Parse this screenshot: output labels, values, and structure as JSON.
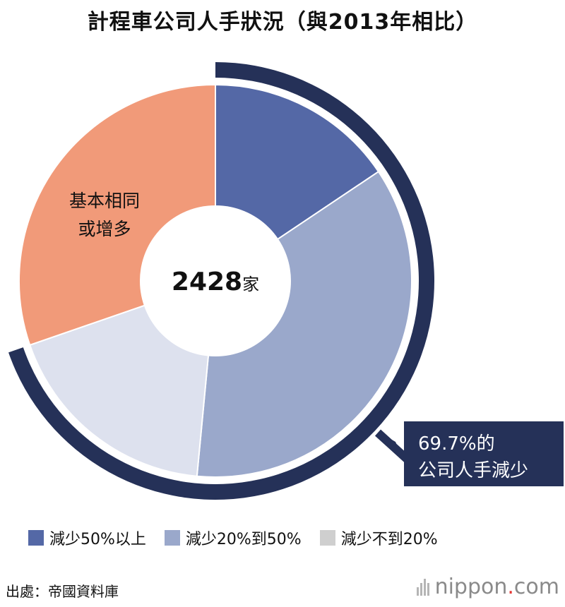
{
  "page": {
    "title": "計程車公司人手狀況（與2013年相比）"
  },
  "chart_data": {
    "type": "pie",
    "title": "計程車公司人手狀況（與2013年相比）",
    "total_label_number": "2428",
    "total_label_unit": "家",
    "slices": [
      {
        "name": "減少50%以上",
        "value": 15.6,
        "color": "#5468a6"
      },
      {
        "name": "減少20%到50%",
        "value": 35.9,
        "color": "#9aa8cb"
      },
      {
        "name": "減少不到20%",
        "value": 18.2,
        "color": "#dde1ee"
      },
      {
        "name": "基本相同或增多",
        "value": 30.3,
        "color": "#f19a79"
      }
    ],
    "labels": {
      "same_or_more_line1": "基本相同",
      "same_or_more_line2": "或增多"
    },
    "callout": {
      "line1": "69.7%的",
      "line2": "公司人手減少",
      "percent": 69.7,
      "color": "#253158"
    },
    "legend": [
      {
        "label": "減少50%以上",
        "color": "#5468a6"
      },
      {
        "label": "減少20%到50%",
        "color": "#9aa8cb"
      },
      {
        "label": "減少不到20%",
        "color": "#cfcfcf"
      }
    ]
  },
  "footer": {
    "source": "出處：帝國資料庫",
    "brand_name": "nippon",
    "brand_dot": ".",
    "brand_tld": "com"
  }
}
